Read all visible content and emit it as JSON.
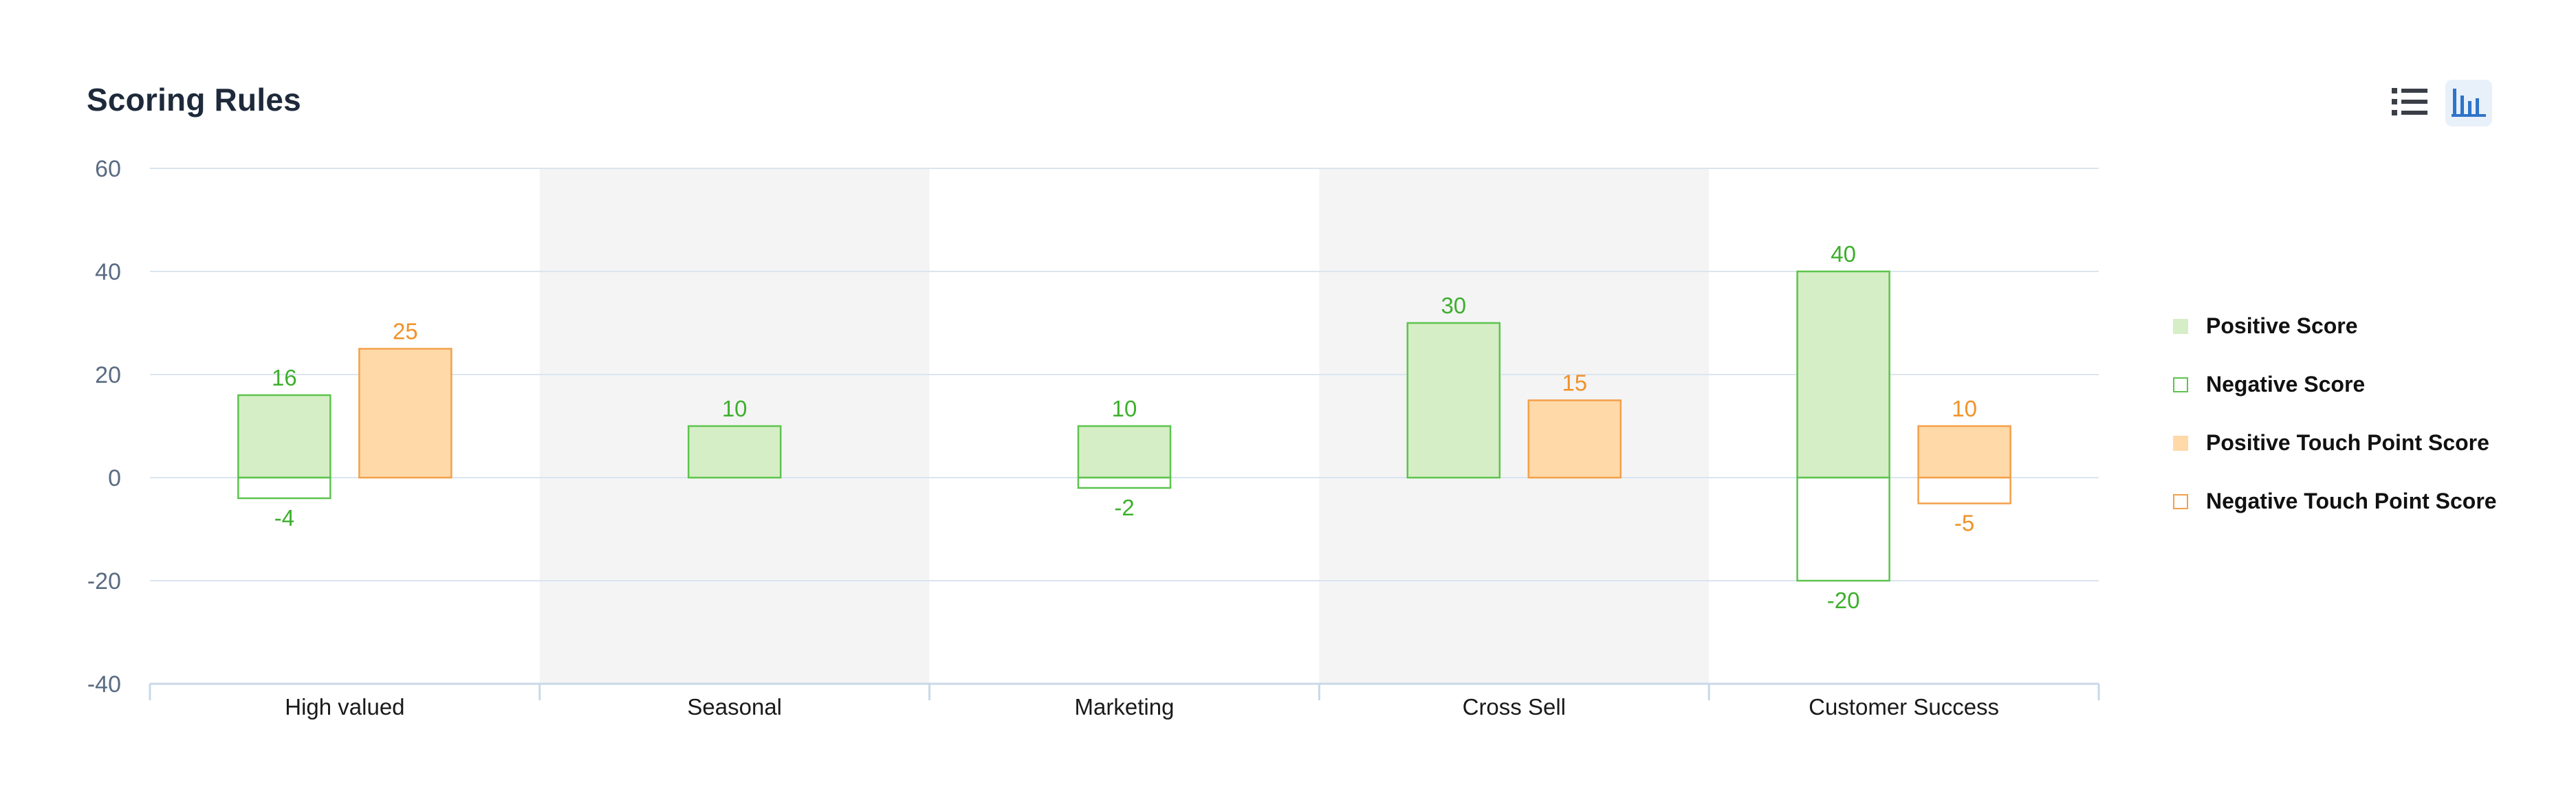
{
  "header": {
    "title": "Scoring Rules",
    "list_view_icon": "list-icon",
    "chart_view_icon": "bar-chart-icon",
    "active_view": "chart"
  },
  "chart_data": {
    "type": "bar",
    "title": "Scoring Rules",
    "xlabel": "",
    "ylabel": "",
    "categories": [
      "High valued",
      "Seasonal",
      "Marketing",
      "Cross Sell",
      "Customer Success"
    ],
    "ylim": [
      -40,
      60
    ],
    "yticks": [
      60,
      40,
      20,
      0,
      -20,
      -40
    ],
    "grid": true,
    "legend_position": "right",
    "series": [
      {
        "name": "Positive Score",
        "style": "filled",
        "color": "#5cc44d",
        "fill": "#d6eec6",
        "values": [
          16,
          10,
          10,
          30,
          40
        ]
      },
      {
        "name": "Negative Score",
        "style": "outline",
        "color": "#5cc44d",
        "fill": "#ffffff",
        "values": [
          -4,
          null,
          -2,
          null,
          -20
        ]
      },
      {
        "name": "Positive Touch Point Score",
        "style": "filled",
        "color": "#f3a04a",
        "fill": "#ffd9a8",
        "values": [
          25,
          null,
          null,
          15,
          10
        ]
      },
      {
        "name": "Negative Touch Point Score",
        "style": "outline",
        "color": "#f3a04a",
        "fill": "#ffffff",
        "values": [
          null,
          null,
          null,
          null,
          -5
        ]
      }
    ],
    "colors": {
      "score_label": "#3daf2c",
      "touch_label": "#f0922a",
      "axis_text": "#5a6b82",
      "grid": "#dbe5ef",
      "band": "#f4f4f5"
    }
  }
}
